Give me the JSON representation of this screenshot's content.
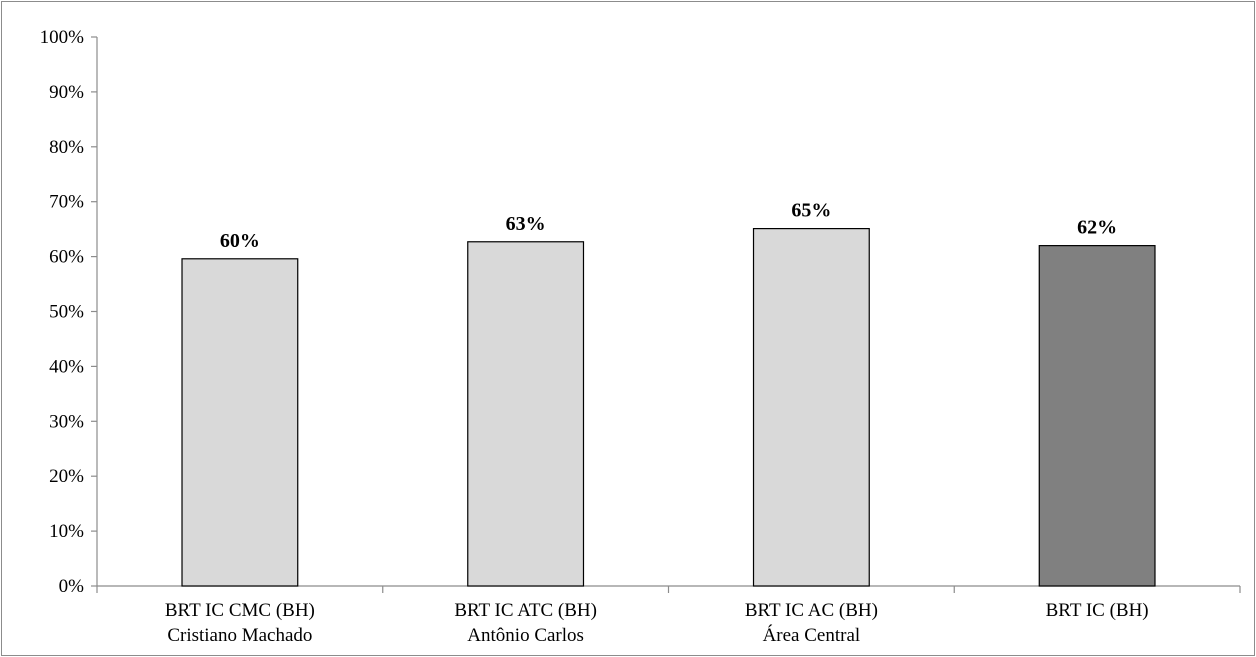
{
  "chart_data": {
    "type": "bar",
    "categories": [
      [
        "BRT IC CMC (BH)",
        "Cristiano Machado"
      ],
      [
        "BRT IC ATC (BH)",
        "Antônio Carlos"
      ],
      [
        "BRT IC AC (BH)",
        "Área Central"
      ],
      [
        "BRT IC (BH)"
      ]
    ],
    "values": [
      0.596,
      0.627,
      0.651,
      0.62
    ],
    "data_labels": [
      "60%",
      "63%",
      "65%",
      "62%"
    ],
    "bar_colors": [
      "#d9d9d9",
      "#d9d9d9",
      "#d9d9d9",
      "#808080"
    ],
    "title": "",
    "xlabel": "",
    "ylabel": "",
    "ylim": [
      0,
      1
    ],
    "yticks": [
      0,
      0.1,
      0.2,
      0.3,
      0.4,
      0.5,
      0.6,
      0.7,
      0.8,
      0.9,
      1.0
    ],
    "ytick_labels": [
      "0%",
      "10%",
      "20%",
      "30%",
      "40%",
      "50%",
      "60%",
      "70%",
      "80%",
      "90%",
      "100%"
    ],
    "grid": false,
    "legend": "none"
  }
}
